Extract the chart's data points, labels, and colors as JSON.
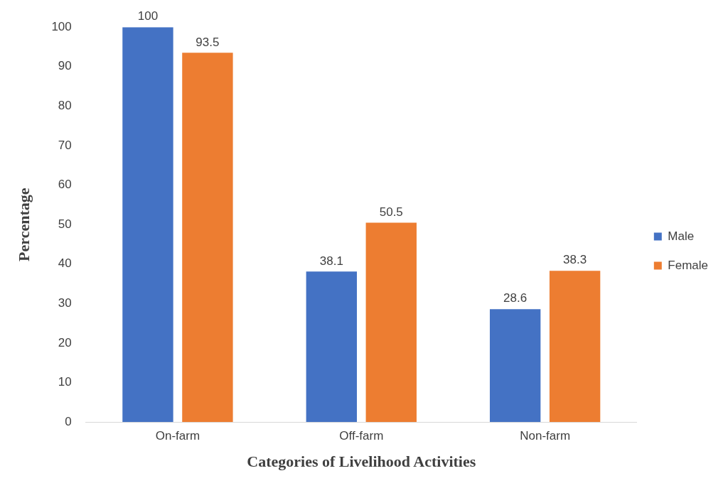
{
  "chart_data": {
    "type": "bar",
    "xlabel": "Categories of Livelihood Activities",
    "ylabel": "Percentage",
    "categories": [
      "On-farm",
      "Off-farm",
      "Non-farm"
    ],
    "series": [
      {
        "name": "Male",
        "color": "#4472c4",
        "values": [
          100,
          38.1,
          28.6
        ]
      },
      {
        "name": "Female",
        "color": "#ed7d31",
        "values": [
          93.5,
          50.5,
          38.3
        ]
      }
    ],
    "ylim": [
      0,
      100
    ],
    "yticks": [
      0,
      10,
      20,
      30,
      40,
      50,
      60,
      70,
      80,
      90,
      100
    ],
    "grid": false,
    "legend": "right",
    "data_labels": true
  }
}
